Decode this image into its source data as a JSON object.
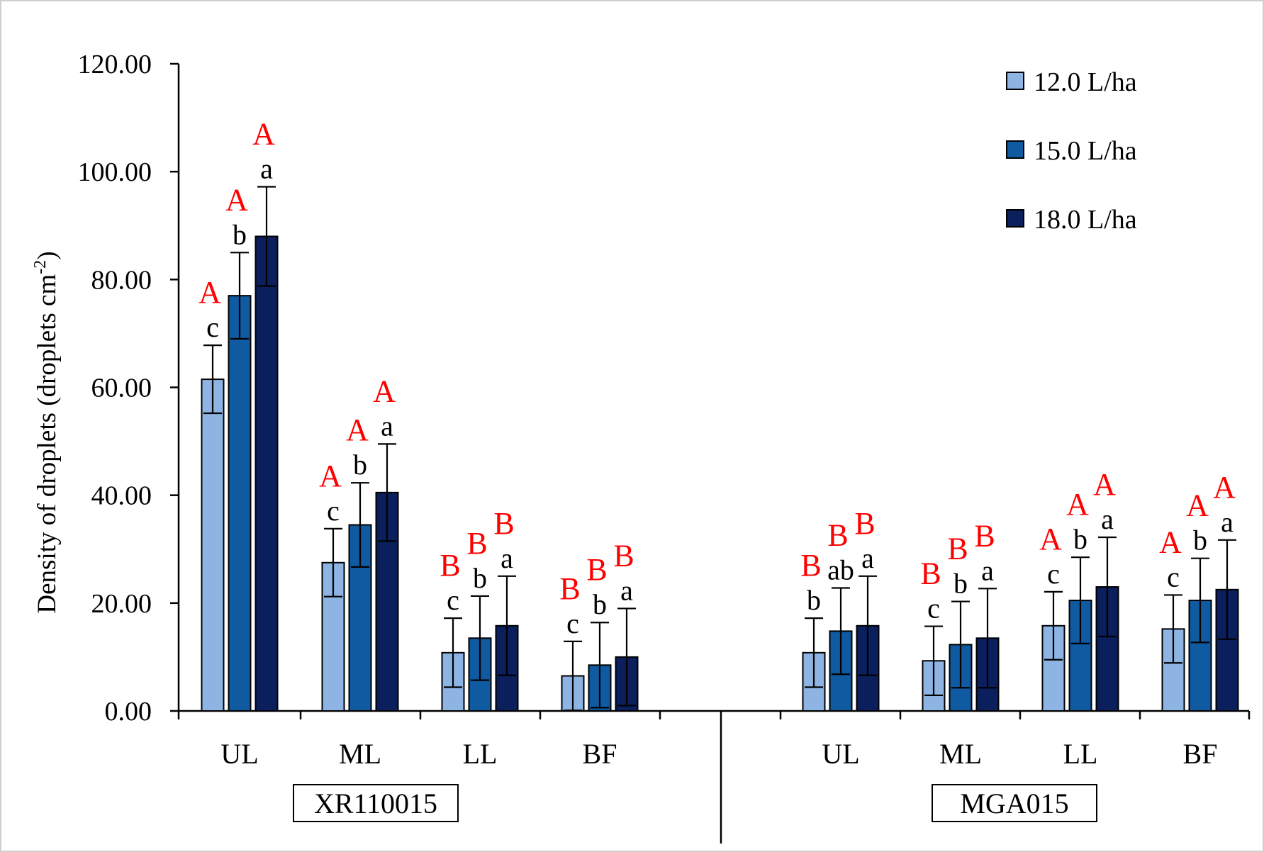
{
  "chart_data": {
    "type": "bar",
    "ylabel": "Density of droplets (droplets cm",
    "ylabel_superscript": "-2",
    "ylabel_suffix": ")",
    "ylim": [
      0,
      120
    ],
    "yticks": [
      "0.00",
      "20.00",
      "40.00",
      "60.00",
      "80.00",
      "100.00",
      "120.00"
    ],
    "ytick_values": [
      0,
      20,
      40,
      60,
      80,
      100,
      120
    ],
    "legend_position": "top-right",
    "colors": [
      "#8DB4E2",
      "#0F5AA0",
      "#0A1F5C"
    ],
    "series": [
      {
        "name": "12.0 L/ha"
      },
      {
        "name": "15.0 L/ha"
      },
      {
        "name": "18.0 L/ha"
      }
    ],
    "groups": [
      {
        "name": "XR110015",
        "categories": [
          {
            "label": "UL",
            "values": [
              61.5,
              77.0,
              88.0
            ],
            "errors": [
              6.3,
              8.0,
              9.2
            ],
            "lower": [
              "c",
              "b",
              "a"
            ],
            "upper": [
              "A",
              "A",
              "A"
            ]
          },
          {
            "label": "ML",
            "values": [
              27.5,
              34.5,
              40.5
            ],
            "errors": [
              6.3,
              7.8,
              9.0
            ],
            "lower": [
              "c",
              "b",
              "a"
            ],
            "upper": [
              "A",
              "A",
              "A"
            ]
          },
          {
            "label": "LL",
            "values": [
              10.8,
              13.5,
              15.8
            ],
            "errors": [
              6.4,
              7.8,
              9.2
            ],
            "lower": [
              "c",
              "b",
              "a"
            ],
            "upper": [
              "B",
              "B",
              "B"
            ]
          },
          {
            "label": "BF",
            "values": [
              6.5,
              8.5,
              10.0
            ],
            "errors": [
              6.4,
              7.9,
              9.0
            ],
            "lower": [
              "c",
              "b",
              "a"
            ],
            "upper": [
              "B",
              "B",
              "B"
            ]
          }
        ]
      },
      {
        "name": "MGA015",
        "categories": [
          {
            "label": "UL",
            "values": [
              10.8,
              14.8,
              15.8
            ],
            "errors": [
              6.4,
              8.0,
              9.2
            ],
            "lower": [
              "b",
              "ab",
              "a"
            ],
            "upper": [
              "B",
              "B",
              "B"
            ]
          },
          {
            "label": "ML",
            "values": [
              9.3,
              12.3,
              13.5
            ],
            "errors": [
              6.4,
              8.0,
              9.2
            ],
            "lower": [
              "c",
              "b",
              "a"
            ],
            "upper": [
              "B",
              "B",
              "B"
            ]
          },
          {
            "label": "LL",
            "values": [
              15.8,
              20.5,
              23.0
            ],
            "errors": [
              6.3,
              8.0,
              9.2
            ],
            "lower": [
              "c",
              "b",
              "a"
            ],
            "upper": [
              "A",
              "A",
              "A"
            ]
          },
          {
            "label": "BF",
            "values": [
              15.2,
              20.5,
              22.5
            ],
            "errors": [
              6.3,
              7.8,
              9.2
            ],
            "lower": [
              "c",
              "b",
              "a"
            ],
            "upper": [
              "A",
              "A",
              "A"
            ]
          }
        ]
      }
    ],
    "upper_letter_color": "#FF0000",
    "lower_letter_color": "#000000"
  }
}
